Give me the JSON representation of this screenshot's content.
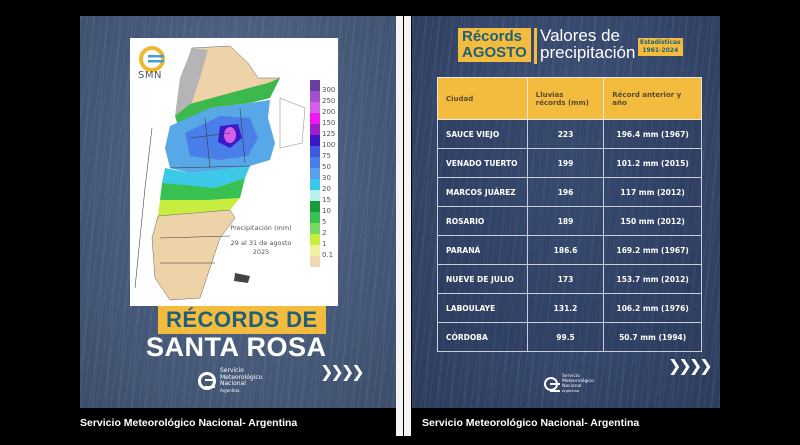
{
  "left_panel": {
    "map": {
      "logo_text": "SMN",
      "legend_values": [
        "300",
        "250",
        "200",
        "150",
        "125",
        "100",
        "75",
        "50",
        "30",
        "20",
        "15",
        "10",
        "5",
        "2",
        "1",
        "0.1"
      ],
      "legend_colors": [
        "#6b3fa0",
        "#a54fcf",
        "#d65fe8",
        "#f018f0",
        "#a020c8",
        "#3a1ac8",
        "#3c5ae0",
        "#4a7ee8",
        "#5aa0ea",
        "#3cc8e8",
        "#b8f0f0",
        "#1a9a3a",
        "#38c050",
        "#78d860",
        "#c8ec40",
        "#f0f0a0",
        "#f0d8b0"
      ],
      "caption_line1": "Precipitación (mm)",
      "caption_line2": "29 al 31 de agosto",
      "caption_line3": "2025"
    },
    "title_highlight": "RÉCORDS DE",
    "title_main": "SANTA ROSA",
    "org_logo_text": [
      "Servicio",
      "Meteorológico",
      "Nacional",
      "Argentina"
    ],
    "arrows": "❯❯❯❯"
  },
  "right_panel": {
    "header_highlight_line1": "Récords",
    "header_highlight_line2": "AGOSTO",
    "header_title_line1": "Valores de",
    "header_title_line2": "precipitación",
    "stats_badge_line1": "Estadísticas",
    "stats_badge_line2": "1961-2024",
    "table": {
      "columns": [
        "Ciudad",
        "Lluvias récords (mm)",
        "Récord anterior y año"
      ],
      "rows": [
        {
          "city": "SAUCE VIEJO",
          "record": "223",
          "previous": "196.4 mm (1967)"
        },
        {
          "city": "VENADO TUERTO",
          "record": "199",
          "previous": "101.2 mm (2015)"
        },
        {
          "city": "MARCOS JUÁREZ",
          "record": "196",
          "previous": "117 mm (2012)"
        },
        {
          "city": "ROSARIO",
          "record": "189",
          "previous": "150 mm (2012)"
        },
        {
          "city": "PARANÁ",
          "record": "186.6",
          "previous": "169.2 mm (1967)"
        },
        {
          "city": "NUEVE DE JULIO",
          "record": "173",
          "previous": "153.7 mm (2012)"
        },
        {
          "city": "LABOULAYE",
          "record": "131.2",
          "previous": "106.2 mm (1976)"
        },
        {
          "city": "CÓRDOBA",
          "record": "99.5",
          "previous": "50.7 mm (1994)"
        }
      ]
    },
    "org_logo_text": [
      "Servicio",
      "Meteorológico",
      "Nacional",
      "Argentina"
    ],
    "arrows": "❯❯❯❯"
  },
  "captions": {
    "left": "Servicio Meteorológico Nacional- Argentina",
    "right": "Servicio Meteorológico Nacional- Argentina"
  },
  "colors": {
    "accent_yellow": "#f3bc3e",
    "title_teal": "#1f5f7a",
    "panel_blue": "#475a7a"
  }
}
